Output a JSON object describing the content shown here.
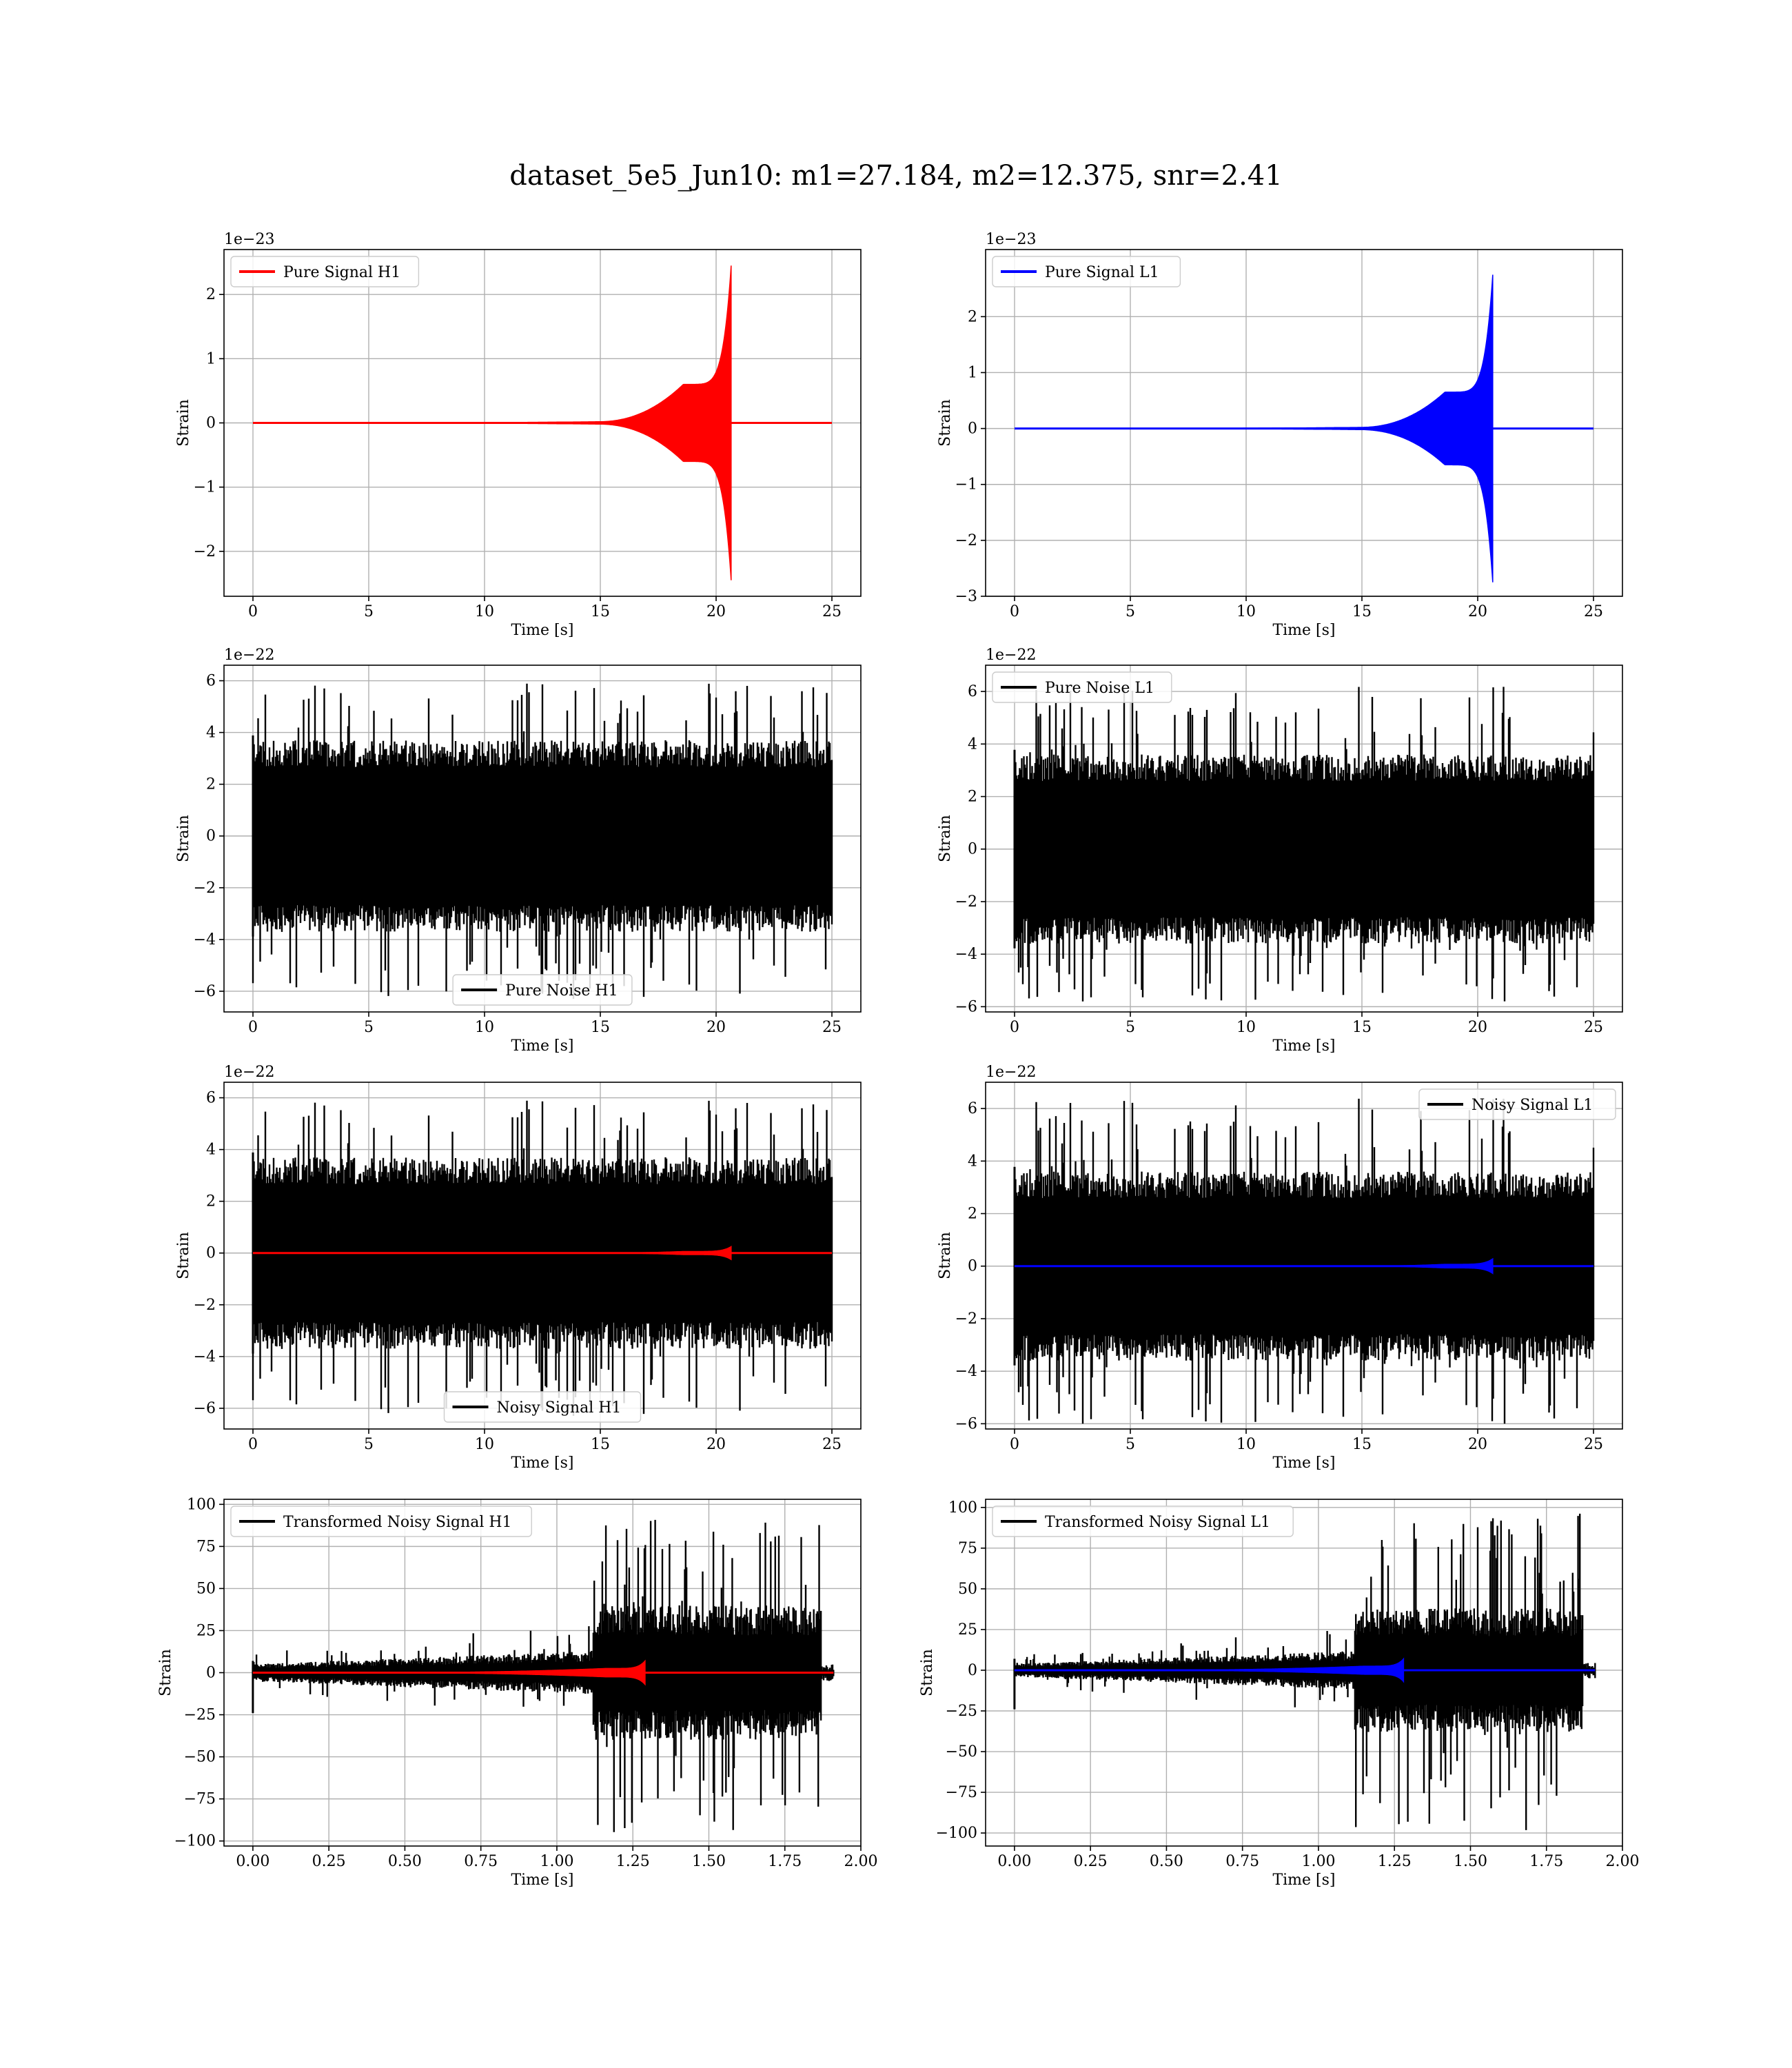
{
  "suptitle": "dataset_5e5_Jun10: m1=27.184, m2=12.375, snr=2.41",
  "colors": {
    "h1_signal": "#ff0000",
    "l1_signal": "#0000ff",
    "noise": "#000000",
    "grid": "#b0b0b0"
  },
  "chart_data": [
    {
      "type": "line",
      "id": "pure-signal-h1",
      "xlabel": "Time [s]",
      "ylabel": "Strain",
      "offset_text": "1e−23",
      "xlim": [
        -1.25,
        26.25
      ],
      "ylim": [
        -2.7,
        2.7
      ],
      "xticks": [
        0,
        5,
        10,
        15,
        20,
        25
      ],
      "xtick_labels": [
        "0",
        "5",
        "10",
        "15",
        "20",
        "25"
      ],
      "yticks": [
        -2,
        -1,
        0,
        1,
        2
      ],
      "ytick_labels": [
        "−2",
        "−1",
        "0",
        "1",
        "2"
      ],
      "legend": {
        "loc": "upper-left"
      },
      "series": [
        {
          "name": "Pure Signal H1",
          "kind": "chirp",
          "color": "h1_signal",
          "t_start": 0,
          "t_end": 25,
          "t_merger": 20.65,
          "peak_pos": 2.45,
          "peak_neg": -2.45,
          "plateau_amp": 0.6
        }
      ]
    },
    {
      "type": "line",
      "id": "pure-signal-l1",
      "xlabel": "Time [s]",
      "ylabel": "Strain",
      "offset_text": "1e−23",
      "xlim": [
        -1.25,
        26.25
      ],
      "ylim": [
        -3.0,
        3.2
      ],
      "xticks": [
        0,
        5,
        10,
        15,
        20,
        25
      ],
      "xtick_labels": [
        "0",
        "5",
        "10",
        "15",
        "20",
        "25"
      ],
      "yticks": [
        -3,
        -2,
        -1,
        0,
        1,
        2
      ],
      "ytick_labels": [
        "−3",
        "−2",
        "−1",
        "0",
        "1",
        "2"
      ],
      "legend": {
        "loc": "upper-left"
      },
      "series": [
        {
          "name": "Pure Signal L1",
          "kind": "chirp",
          "color": "l1_signal",
          "t_start": 0,
          "t_end": 25,
          "t_merger": 20.65,
          "peak_pos": 2.75,
          "peak_neg": -2.75,
          "plateau_amp": 0.65
        }
      ]
    },
    {
      "type": "line",
      "id": "pure-noise-h1",
      "xlabel": "Time [s]",
      "ylabel": "Strain",
      "offset_text": "1e−22",
      "xlim": [
        -1.25,
        26.25
      ],
      "ylim": [
        -6.8,
        6.6
      ],
      "xticks": [
        0,
        5,
        10,
        15,
        20,
        25
      ],
      "xtick_labels": [
        "0",
        "5",
        "10",
        "15",
        "20",
        "25"
      ],
      "yticks": [
        -6,
        -4,
        -2,
        0,
        2,
        4,
        6
      ],
      "ytick_labels": [
        "−6",
        "−4",
        "−2",
        "0",
        "2",
        "4",
        "6"
      ],
      "legend": {
        "loc": "lower-center"
      },
      "series": [
        {
          "name": "Pure Noise H1",
          "kind": "noise",
          "color": "noise",
          "t_start": 0,
          "t_end": 25,
          "band": 3.7,
          "max": 5.9,
          "min": -6.3,
          "seed": 11
        }
      ]
    },
    {
      "type": "line",
      "id": "pure-noise-l1",
      "xlabel": "Time [s]",
      "ylabel": "Strain",
      "offset_text": "1e−22",
      "xlim": [
        -1.25,
        26.25
      ],
      "ylim": [
        -6.2,
        7.0
      ],
      "xticks": [
        0,
        5,
        10,
        15,
        20,
        25
      ],
      "xtick_labels": [
        "0",
        "5",
        "10",
        "15",
        "20",
        "25"
      ],
      "yticks": [
        -6,
        -4,
        -2,
        0,
        2,
        4,
        6
      ],
      "ytick_labels": [
        "−6",
        "−4",
        "−2",
        "0",
        "2",
        "4",
        "6"
      ],
      "legend": {
        "loc": "upper-left"
      },
      "series": [
        {
          "name": "Pure Noise L1",
          "kind": "noise",
          "color": "noise",
          "t_start": 0,
          "t_end": 25,
          "band": 3.6,
          "max": 6.2,
          "min": -5.8,
          "seed": 23
        }
      ]
    },
    {
      "type": "line",
      "id": "noisy-signal-h1",
      "xlabel": "Time [s]",
      "ylabel": "Strain",
      "offset_text": "1e−22",
      "xlim": [
        -1.25,
        26.25
      ],
      "ylim": [
        -6.8,
        6.6
      ],
      "xticks": [
        0,
        5,
        10,
        15,
        20,
        25
      ],
      "xtick_labels": [
        "0",
        "5",
        "10",
        "15",
        "20",
        "25"
      ],
      "yticks": [
        -6,
        -4,
        -2,
        0,
        2,
        4,
        6
      ],
      "ytick_labels": [
        "−6",
        "−4",
        "−2",
        "0",
        "2",
        "4",
        "6"
      ],
      "legend": {
        "loc": "lower-center"
      },
      "series": [
        {
          "name": "Noisy Signal H1",
          "kind": "noise",
          "color": "noise",
          "t_start": 0,
          "t_end": 25,
          "band": 3.7,
          "max": 5.9,
          "min": -6.3,
          "seed": 11
        },
        {
          "kind": "chirp",
          "color": "h1_signal",
          "t_start": 0,
          "t_end": 25,
          "t_merger": 20.65,
          "peak_pos": 0.25,
          "peak_neg": -0.25,
          "plateau_amp": 0.06
        }
      ]
    },
    {
      "type": "line",
      "id": "noisy-signal-l1",
      "xlabel": "Time [s]",
      "ylabel": "Strain",
      "offset_text": "1e−22",
      "xlim": [
        -1.25,
        26.25
      ],
      "ylim": [
        -6.2,
        7.0
      ],
      "xticks": [
        0,
        5,
        10,
        15,
        20,
        25
      ],
      "xtick_labels": [
        "0",
        "5",
        "10",
        "15",
        "20",
        "25"
      ],
      "yticks": [
        -6,
        -4,
        -2,
        0,
        2,
        4,
        6
      ],
      "ytick_labels": [
        "−6",
        "−4",
        "−2",
        "0",
        "2",
        "4",
        "6"
      ],
      "legend": {
        "loc": "upper-right"
      },
      "series": [
        {
          "name": "Noisy Signal L1",
          "kind": "noise",
          "color": "noise",
          "t_start": 0,
          "t_end": 25,
          "band": 3.6,
          "max": 6.4,
          "min": -6.0,
          "seed": 23
        },
        {
          "kind": "chirp",
          "color": "l1_signal",
          "t_start": 0,
          "t_end": 25,
          "t_merger": 20.65,
          "peak_pos": 0.28,
          "peak_neg": -0.28,
          "plateau_amp": 0.07
        }
      ]
    },
    {
      "type": "line",
      "id": "transformed-noisy-signal-h1",
      "xlabel": "Time [s]",
      "ylabel": "Strain",
      "offset_text": "",
      "xlim": [
        -0.095,
        2.0
      ],
      "ylim": [
        -103,
        103
      ],
      "xticks": [
        0,
        0.25,
        0.5,
        0.75,
        1.0,
        1.25,
        1.5,
        1.75,
        2.0
      ],
      "xtick_labels": [
        "0.00",
        "0.25",
        "0.50",
        "0.75",
        "1.00",
        "1.25",
        "1.50",
        "1.75",
        "2.00"
      ],
      "yticks": [
        -100,
        -75,
        -50,
        -25,
        0,
        25,
        50,
        75,
        100
      ],
      "ytick_labels": [
        "−100",
        "−75",
        "−50",
        "−25",
        "0",
        "25",
        "50",
        "75",
        "100"
      ],
      "legend": {
        "loc": "upper-left"
      },
      "series": [
        {
          "name": "Transformed Noisy Signal H1",
          "kind": "whitened",
          "color": "noise",
          "t_start": 0,
          "t_end": 1.91,
          "t_jump": 1.12,
          "t_drop": 1.87,
          "seed": 41,
          "early_band": [
            5,
            13
          ],
          "late_band": 40,
          "max": 92,
          "min": -95
        },
        {
          "kind": "chirp",
          "color": "h1_signal",
          "t_start": 0,
          "t_end": 1.91,
          "t_merger": 1.29,
          "peak_pos": 7,
          "peak_neg": -7,
          "plateau_amp": 2.5,
          "inspiral": 0.35
        }
      ]
    },
    {
      "type": "line",
      "id": "transformed-noisy-signal-l1",
      "xlabel": "Time [s]",
      "ylabel": "Strain",
      "offset_text": "",
      "xlim": [
        -0.095,
        2.0
      ],
      "ylim": [
        -108,
        105
      ],
      "xticks": [
        0,
        0.25,
        0.5,
        0.75,
        1.0,
        1.25,
        1.5,
        1.75,
        2.0
      ],
      "xtick_labels": [
        "0.00",
        "0.25",
        "0.50",
        "0.75",
        "1.00",
        "1.25",
        "1.50",
        "1.75",
        "2.00"
      ],
      "yticks": [
        -100,
        -75,
        -50,
        -25,
        0,
        25,
        50,
        75,
        100
      ],
      "ytick_labels": [
        "−100",
        "−75",
        "−50",
        "−25",
        "0",
        "25",
        "50",
        "75",
        "100"
      ],
      "legend": {
        "loc": "upper-left"
      },
      "series": [
        {
          "name": "Transformed Noisy Signal L1",
          "kind": "whitened",
          "color": "noise",
          "t_start": 0,
          "t_end": 1.91,
          "t_jump": 1.12,
          "t_drop": 1.87,
          "seed": 57,
          "early_band": [
            4,
            12
          ],
          "late_band": 38,
          "max": 97,
          "min": -100
        },
        {
          "kind": "chirp",
          "color": "l1_signal",
          "t_start": 0,
          "t_end": 1.91,
          "t_merger": 1.28,
          "peak_pos": 7,
          "peak_neg": -7,
          "plateau_amp": 2.5,
          "inspiral": 0.35
        }
      ]
    }
  ]
}
